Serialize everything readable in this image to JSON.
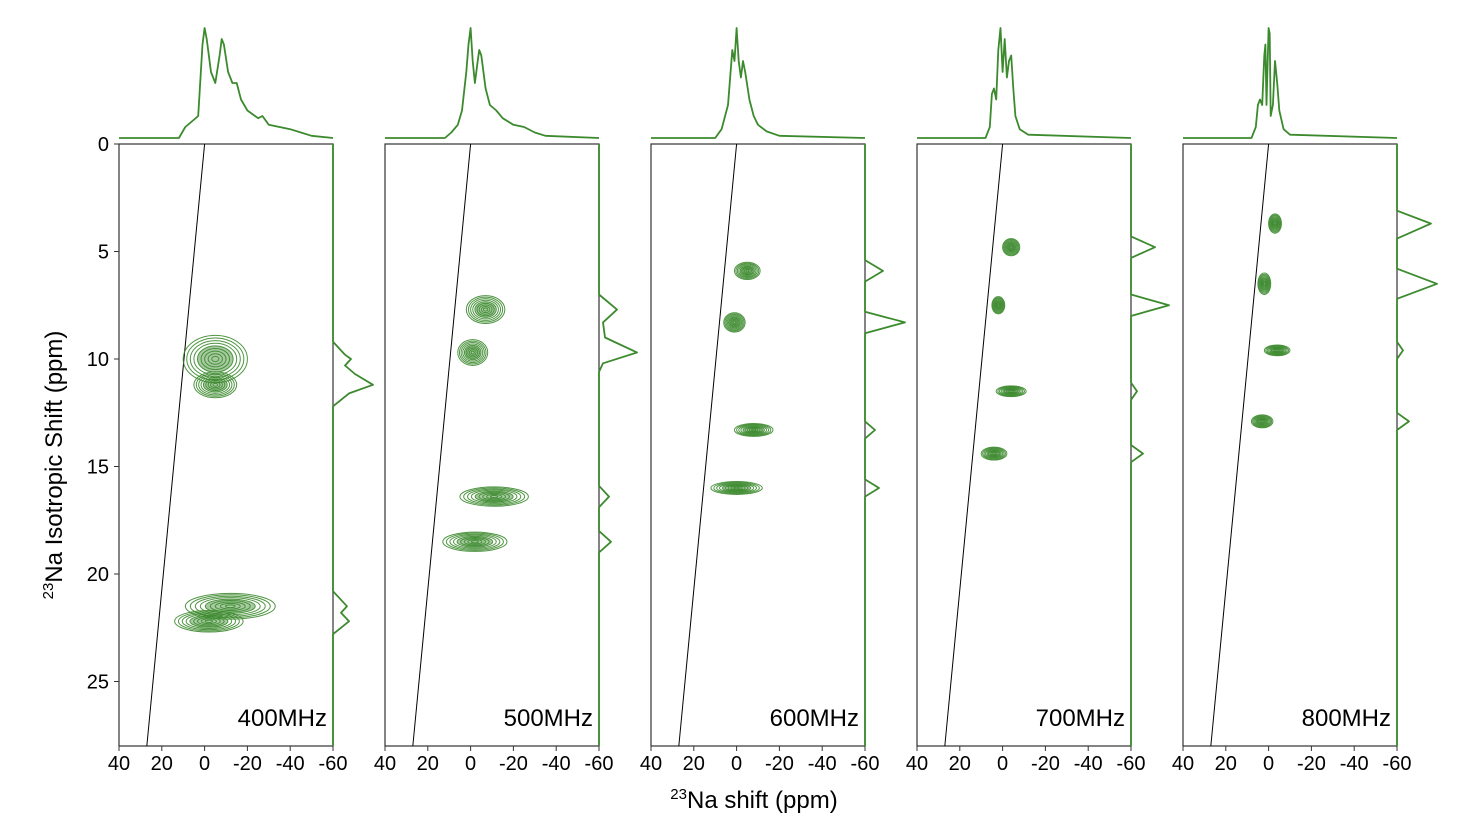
{
  "chart_data": {
    "type": "contour",
    "xlabel": {
      "sup": "23",
      "text": "Na shift (ppm)"
    },
    "ylabel": {
      "sup": "23",
      "text": "Na Isotropic Shift (ppm)"
    },
    "xlim": [
      40,
      -60
    ],
    "ylim": [
      0,
      28
    ],
    "x_ticks": [
      "40",
      "20",
      "0",
      "-20",
      "-40",
      "-60"
    ],
    "x_tick_values": [
      40,
      20,
      0,
      -20,
      -40,
      -60
    ],
    "y_ticks": [
      "0",
      "5",
      "10",
      "15",
      "20",
      "25"
    ],
    "y_tick_values": [
      0,
      5,
      10,
      15,
      20,
      25
    ],
    "line_color": "#3c8a2e",
    "diagonal": {
      "top_x": 0,
      "bottom_x": 27
    },
    "panels": [
      {
        "label": "400MHz",
        "peaks": [
          {
            "x": -5,
            "y": 10.0,
            "w": 30,
            "h": 2.2
          },
          {
            "x": -5,
            "y": 11.2,
            "w": 20,
            "h": 1.2
          },
          {
            "x": -12,
            "y": 21.5,
            "w": 42,
            "h": 1.2
          },
          {
            "x": -2,
            "y": 22.2,
            "w": 32,
            "h": 1.0
          }
        ],
        "projection_x": [
          [
            40,
            0
          ],
          [
            12,
            0
          ],
          [
            9,
            0.1
          ],
          [
            6,
            0.15
          ],
          [
            3,
            0.2
          ],
          [
            1,
            0.85
          ],
          [
            0,
            1.0
          ],
          [
            -1,
            0.9
          ],
          [
            -3,
            0.6
          ],
          [
            -5,
            0.5
          ],
          [
            -7,
            0.75
          ],
          [
            -8,
            0.9
          ],
          [
            -9,
            0.85
          ],
          [
            -11,
            0.6
          ],
          [
            -13,
            0.5
          ],
          [
            -15,
            0.5
          ],
          [
            -17,
            0.35
          ],
          [
            -20,
            0.25
          ],
          [
            -25,
            0.18
          ],
          [
            -27,
            0.2
          ],
          [
            -30,
            0.12
          ],
          [
            -35,
            0.1
          ],
          [
            -40,
            0.08
          ],
          [
            -45,
            0.05
          ],
          [
            -50,
            0.02
          ],
          [
            -60,
            0
          ]
        ],
        "projection_y": [
          [
            0,
            0
          ],
          [
            9.2,
            0
          ],
          [
            9.8,
            0.3
          ],
          [
            10.0,
            0.45
          ],
          [
            10.3,
            0.3
          ],
          [
            10.7,
            0.55
          ],
          [
            11.2,
            1.0
          ],
          [
            11.6,
            0.4
          ],
          [
            12.2,
            0
          ],
          [
            20.8,
            0
          ],
          [
            21.5,
            0.35
          ],
          [
            21.8,
            0.2
          ],
          [
            22.2,
            0.4
          ],
          [
            22.8,
            0
          ],
          [
            28,
            0
          ]
        ]
      },
      {
        "label": "500MHz",
        "peaks": [
          {
            "x": -7,
            "y": 7.7,
            "w": 18,
            "h": 1.3
          },
          {
            "x": -1,
            "y": 9.7,
            "w": 14,
            "h": 1.2
          },
          {
            "x": -11,
            "y": 16.4,
            "w": 32,
            "h": 0.9
          },
          {
            "x": -2,
            "y": 18.5,
            "w": 30,
            "h": 0.9
          }
        ],
        "projection_x": [
          [
            40,
            0
          ],
          [
            12,
            0
          ],
          [
            9,
            0.05
          ],
          [
            6,
            0.12
          ],
          [
            4,
            0.25
          ],
          [
            2,
            0.6
          ],
          [
            1,
            0.85
          ],
          [
            0,
            1.0
          ],
          [
            -1,
            0.7
          ],
          [
            -2,
            0.5
          ],
          [
            -3,
            0.65
          ],
          [
            -4,
            0.8
          ],
          [
            -5,
            0.75
          ],
          [
            -7,
            0.45
          ],
          [
            -9,
            0.3
          ],
          [
            -12,
            0.25
          ],
          [
            -15,
            0.18
          ],
          [
            -20,
            0.12
          ],
          [
            -25,
            0.1
          ],
          [
            -30,
            0.05
          ],
          [
            -35,
            0.02
          ],
          [
            -60,
            0
          ]
        ],
        "projection_y": [
          [
            0,
            0
          ],
          [
            7.0,
            0
          ],
          [
            7.7,
            0.45
          ],
          [
            8.3,
            0.1
          ],
          [
            9.0,
            0.15
          ],
          [
            9.7,
            0.95
          ],
          [
            10.2,
            0.1
          ],
          [
            10.6,
            0
          ],
          [
            15.9,
            0
          ],
          [
            16.4,
            0.25
          ],
          [
            16.9,
            0
          ],
          [
            18.0,
            0
          ],
          [
            18.5,
            0.3
          ],
          [
            19.0,
            0
          ],
          [
            28,
            0
          ]
        ]
      },
      {
        "label": "600MHz",
        "peaks": [
          {
            "x": -5,
            "y": 5.9,
            "w": 12,
            "h": 0.8
          },
          {
            "x": 1,
            "y": 8.3,
            "w": 10,
            "h": 0.9
          },
          {
            "x": -8,
            "y": 13.3,
            "w": 18,
            "h": 0.6
          },
          {
            "x": 0,
            "y": 16.0,
            "w": 24,
            "h": 0.6
          }
        ],
        "projection_x": [
          [
            40,
            0
          ],
          [
            10,
            0
          ],
          [
            7,
            0.08
          ],
          [
            4,
            0.3
          ],
          [
            2,
            0.8
          ],
          [
            1,
            0.7
          ],
          [
            0,
            1.0
          ],
          [
            -1,
            0.7
          ],
          [
            -2,
            0.55
          ],
          [
            -3,
            0.7
          ],
          [
            -4,
            0.6
          ],
          [
            -6,
            0.35
          ],
          [
            -8,
            0.2
          ],
          [
            -10,
            0.12
          ],
          [
            -14,
            0.06
          ],
          [
            -20,
            0.02
          ],
          [
            -60,
            0
          ]
        ],
        "projection_y": [
          [
            0,
            0
          ],
          [
            5.4,
            0
          ],
          [
            5.9,
            0.45
          ],
          [
            6.4,
            0
          ],
          [
            7.8,
            0
          ],
          [
            8.3,
            1.0
          ],
          [
            8.8,
            0
          ],
          [
            12.9,
            0
          ],
          [
            13.3,
            0.25
          ],
          [
            13.7,
            0
          ],
          [
            15.6,
            0
          ],
          [
            16.0,
            0.35
          ],
          [
            16.4,
            0
          ],
          [
            28,
            0
          ]
        ]
      },
      {
        "label": "700MHz",
        "peaks": [
          {
            "x": -4,
            "y": 4.8,
            "w": 8,
            "h": 0.8
          },
          {
            "x": 2,
            "y": 7.5,
            "w": 6,
            "h": 0.8
          },
          {
            "x": -4,
            "y": 11.5,
            "w": 14,
            "h": 0.5
          },
          {
            "x": 4,
            "y": 14.4,
            "w": 12,
            "h": 0.6
          }
        ],
        "projection_x": [
          [
            40,
            0
          ],
          [
            8,
            0
          ],
          [
            6,
            0.1
          ],
          [
            5,
            0.4
          ],
          [
            4,
            0.45
          ],
          [
            3,
            0.35
          ],
          [
            2,
            0.8
          ],
          [
            1,
            1.0
          ],
          [
            0,
            0.6
          ],
          [
            -1,
            0.9
          ],
          [
            -2,
            0.55
          ],
          [
            -3,
            0.7
          ],
          [
            -4,
            0.75
          ],
          [
            -5,
            0.45
          ],
          [
            -6,
            0.2
          ],
          [
            -8,
            0.08
          ],
          [
            -12,
            0.03
          ],
          [
            -60,
            0
          ]
        ],
        "projection_y": [
          [
            0,
            0
          ],
          [
            4.3,
            0
          ],
          [
            4.8,
            0.6
          ],
          [
            5.3,
            0
          ],
          [
            7.0,
            0
          ],
          [
            7.5,
            0.95
          ],
          [
            8.0,
            0
          ],
          [
            11.1,
            0
          ],
          [
            11.5,
            0.15
          ],
          [
            11.9,
            0
          ],
          [
            14.0,
            0
          ],
          [
            14.4,
            0.3
          ],
          [
            14.8,
            0
          ],
          [
            28,
            0
          ]
        ]
      },
      {
        "label": "800MHz",
        "peaks": [
          {
            "x": -3,
            "y": 3.7,
            "w": 6,
            "h": 0.9
          },
          {
            "x": 2,
            "y": 6.5,
            "w": 6,
            "h": 1.0
          },
          {
            "x": -4,
            "y": 9.6,
            "w": 12,
            "h": 0.5
          },
          {
            "x": 3,
            "y": 12.9,
            "w": 10,
            "h": 0.6
          }
        ],
        "projection_x": [
          [
            40,
            0
          ],
          [
            8,
            0
          ],
          [
            6,
            0.1
          ],
          [
            5,
            0.3
          ],
          [
            4,
            0.35
          ],
          [
            3,
            0.3
          ],
          [
            2,
            0.75
          ],
          [
            1.5,
            0.85
          ],
          [
            1,
            0.3
          ],
          [
            0,
            1.0
          ],
          [
            -0.5,
            0.95
          ],
          [
            -1,
            0.2
          ],
          [
            -2,
            0.3
          ],
          [
            -3,
            0.7
          ],
          [
            -4,
            0.5
          ],
          [
            -5,
            0.25
          ],
          [
            -7,
            0.08
          ],
          [
            -10,
            0.03
          ],
          [
            -60,
            0
          ]
        ],
        "projection_y": [
          [
            0,
            0
          ],
          [
            3.1,
            0
          ],
          [
            3.7,
            0.85
          ],
          [
            4.4,
            0
          ],
          [
            5.8,
            0
          ],
          [
            6.5,
            1.0
          ],
          [
            7.2,
            0
          ],
          [
            9.2,
            0
          ],
          [
            9.6,
            0.15
          ],
          [
            10.0,
            0
          ],
          [
            12.5,
            0
          ],
          [
            12.9,
            0.3
          ],
          [
            13.3,
            0
          ],
          [
            28,
            0
          ]
        ]
      }
    ]
  }
}
